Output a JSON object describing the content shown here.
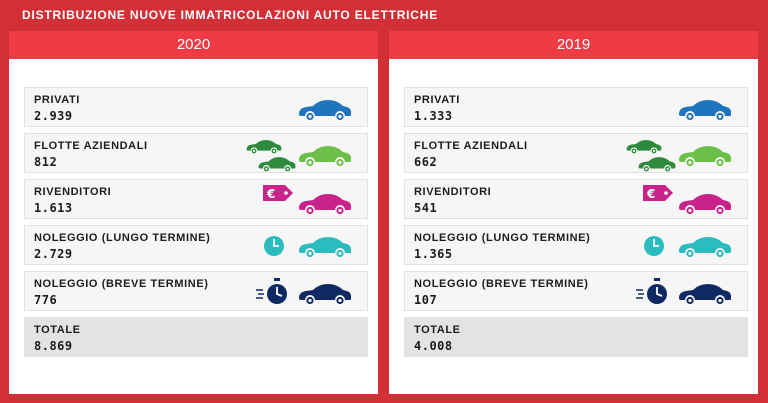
{
  "title": "DISTRIBUZIONE NUOVE IMMATRICOLAZIONI AUTO ELETTRICHE",
  "colors": {
    "frame": "#d32f36",
    "header": "#ee3b44",
    "privati": "#1f74be",
    "flotte_dark": "#2e8b3e",
    "flotte_light": "#6cc04a",
    "rivenditori": "#c7238a",
    "noleggio_lungo": "#2bbcbf",
    "noleggio_breve": "#0f2a63"
  },
  "panels": [
    {
      "year": "2020",
      "rows": [
        {
          "label": "PRIVATI",
          "value": "2.939",
          "icon": "blue-car-icon"
        },
        {
          "label": "FLOTTE AZIENDALI",
          "value": "812",
          "icon": "green-cars-icon"
        },
        {
          "label": "RIVENDITORI",
          "value": "1.613",
          "icon": "euro-tag-car-icon"
        },
        {
          "label": "NOLEGGIO (LUNGO TERMINE)",
          "value": "2.729",
          "icon": "clock-car-icon"
        },
        {
          "label": "NOLEGGIO (BREVE TERMINE)",
          "value": "776",
          "icon": "stopwatch-car-icon"
        }
      ],
      "total": {
        "label": "TOTALE",
        "value": "8.869"
      }
    },
    {
      "year": "2019",
      "rows": [
        {
          "label": "PRIVATI",
          "value": "1.333",
          "icon": "blue-car-icon"
        },
        {
          "label": "FLOTTE AZIENDALI",
          "value": "662",
          "icon": "green-cars-icon"
        },
        {
          "label": "RIVENDITORI",
          "value": "541",
          "icon": "euro-tag-car-icon"
        },
        {
          "label": "NOLEGGIO (LUNGO TERMINE)",
          "value": "1.365",
          "icon": "clock-car-icon"
        },
        {
          "label": "NOLEGGIO (BREVE TERMINE)",
          "value": "107",
          "icon": "stopwatch-car-icon"
        }
      ],
      "total": {
        "label": "TOTALE",
        "value": "4.008"
      }
    }
  ]
}
